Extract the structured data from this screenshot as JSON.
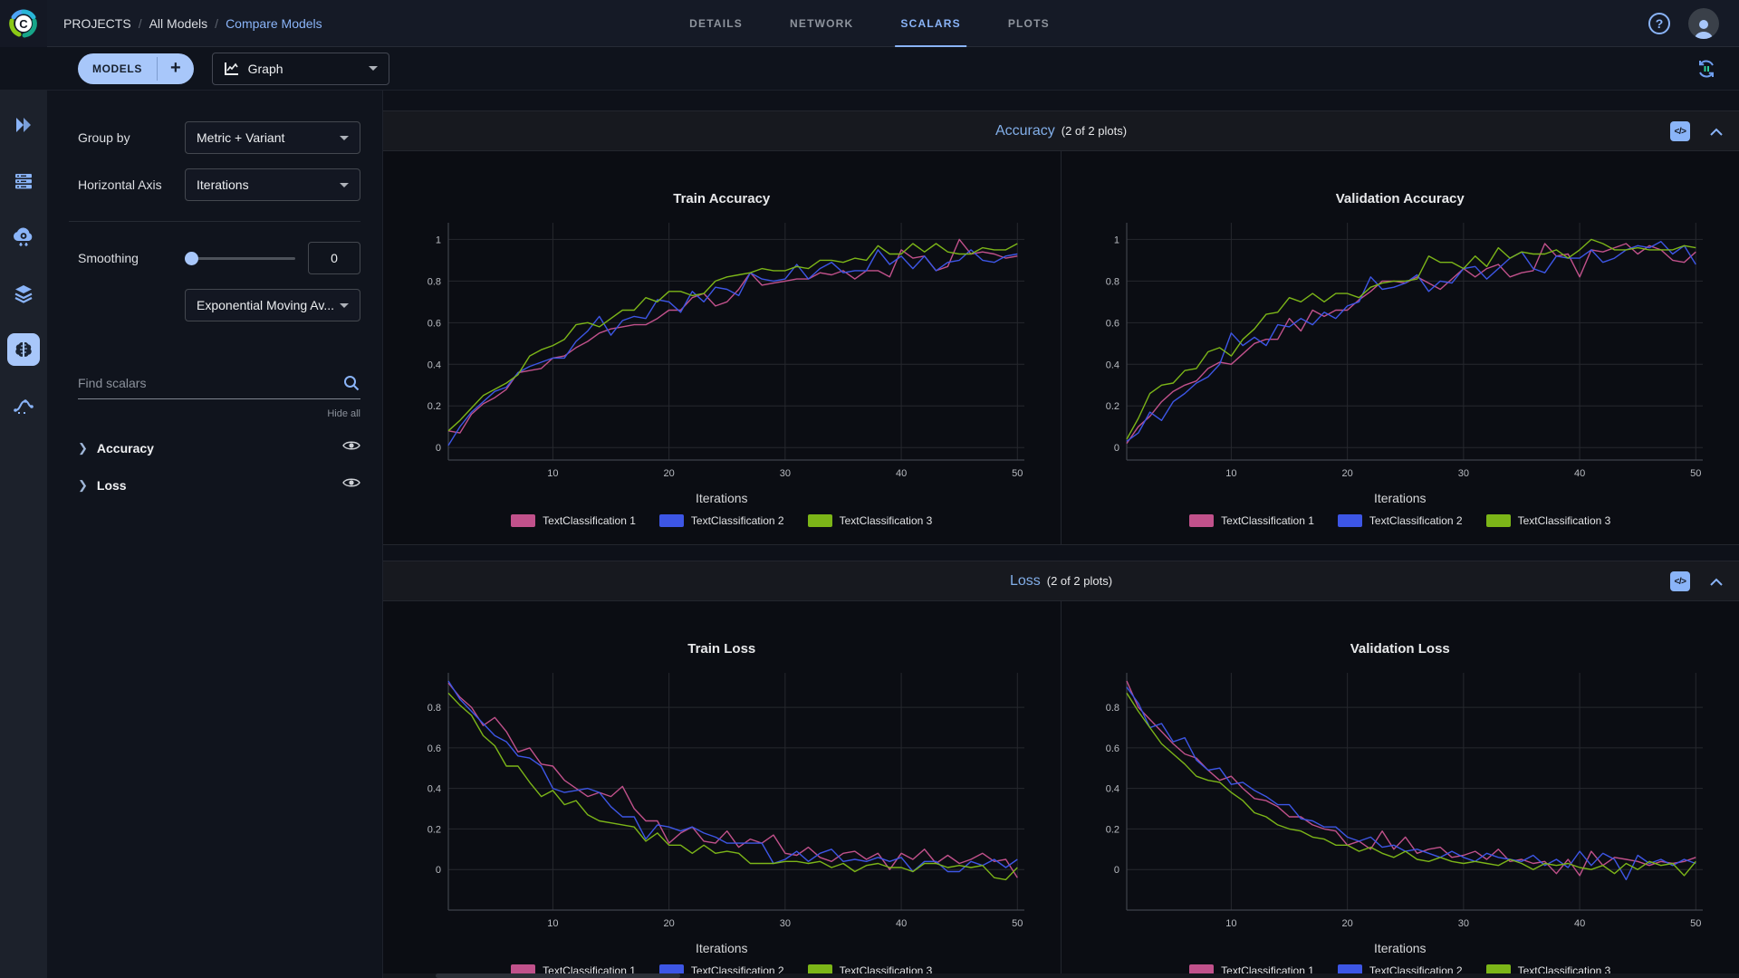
{
  "colors": {
    "accent": "#8ab4f8",
    "pill": "#a8c7fa",
    "series_pink": "#c1518b",
    "series_blue": "#3d56e5",
    "series_green": "#7cb518",
    "grid": "#26282e",
    "axis": "#3f434b",
    "tick_text": "#b9bcc2"
  },
  "header": {
    "breadcrumb": {
      "root": "PROJECTS",
      "sep": "/",
      "parent": "All Models",
      "current": "Compare Models"
    },
    "tabs": [
      {
        "label": "DETAILS",
        "active": false
      },
      {
        "label": "NETWORK",
        "active": false
      },
      {
        "label": "SCALARS",
        "active": true
      },
      {
        "label": "PLOTS",
        "active": false
      }
    ],
    "help": "?"
  },
  "toolbar": {
    "models_label": "MODELS",
    "add_label": "+",
    "graph_type": "Graph"
  },
  "sidebar": {
    "icons": [
      {
        "name": "dashboard-icon",
        "active": false
      },
      {
        "name": "queues-icon",
        "active": false
      },
      {
        "name": "workers-icon",
        "active": false
      },
      {
        "name": "datasets-icon",
        "active": false
      },
      {
        "name": "models-icon",
        "active": true
      },
      {
        "name": "pipelines-icon",
        "active": false
      }
    ]
  },
  "controls": {
    "group_by_label": "Group by",
    "group_by_value": "Metric + Variant",
    "horizontal_axis_label": "Horizontal Axis",
    "horizontal_axis_value": "Iterations",
    "smoothing_label": "Smoothing",
    "smoothing_value": "0",
    "smoothing_type": "Exponential Moving Av...",
    "find_scalars_placeholder": "Find scalars",
    "hide_all": "Hide all",
    "metrics": [
      {
        "name": "Accuracy"
      },
      {
        "name": "Loss"
      }
    ]
  },
  "sections": [
    {
      "title": "Accuracy",
      "count": "(2 of 2 plots)",
      "embed": "</>"
    },
    {
      "title": "Loss",
      "count": "(2 of 2 plots)",
      "embed": "</>"
    }
  ],
  "chart_data": [
    {
      "type": "line",
      "title": "Train Accuracy",
      "xlabel": "Iterations",
      "x_start": 1,
      "xlim": [
        1,
        50.6
      ],
      "ylim": [
        -0.06,
        1.08
      ],
      "xticks": [
        10,
        20,
        30,
        40,
        50
      ],
      "yticks": [
        0,
        0.2,
        0.4,
        0.6,
        0.8,
        1
      ],
      "grid": true,
      "legend_position": "bottom",
      "series": [
        {
          "name": "TextClassification 1",
          "color": "series_pink",
          "values": [
            0.08,
            0.07,
            0.16,
            0.21,
            0.24,
            0.28,
            0.36,
            0.37,
            0.38,
            0.43,
            0.44,
            0.48,
            0.51,
            0.55,
            0.57,
            0.58,
            0.59,
            0.59,
            0.62,
            0.66,
            0.66,
            0.72,
            0.74,
            0.68,
            0.7,
            0.76,
            0.84,
            0.78,
            0.79,
            0.8,
            0.81,
            0.81,
            0.84,
            0.83,
            0.85,
            0.81,
            0.85,
            0.85,
            0.82,
            0.95,
            0.91,
            0.92,
            0.85,
            0.87,
            1.0,
            0.93,
            0.94,
            0.93,
            0.91,
            0.92
          ]
        },
        {
          "name": "TextClassification 2",
          "color": "series_blue",
          "values": [
            0.01,
            0.1,
            0.17,
            0.22,
            0.27,
            0.29,
            0.36,
            0.39,
            0.41,
            0.43,
            0.43,
            0.51,
            0.56,
            0.63,
            0.54,
            0.61,
            0.63,
            0.62,
            0.71,
            0.7,
            0.65,
            0.75,
            0.7,
            0.77,
            0.76,
            0.73,
            0.84,
            0.81,
            0.8,
            0.81,
            0.88,
            0.81,
            0.86,
            0.89,
            0.84,
            0.85,
            0.85,
            0.95,
            0.88,
            0.92,
            0.86,
            0.92,
            0.85,
            0.89,
            0.9,
            0.95,
            0.9,
            0.89,
            0.92,
            0.93
          ]
        },
        {
          "name": "TextClassification 3",
          "color": "series_green",
          "values": [
            0.08,
            0.13,
            0.19,
            0.25,
            0.28,
            0.31,
            0.35,
            0.44,
            0.47,
            0.49,
            0.52,
            0.59,
            0.6,
            0.58,
            0.62,
            0.66,
            0.66,
            0.72,
            0.7,
            0.75,
            0.75,
            0.73,
            0.74,
            0.8,
            0.82,
            0.83,
            0.84,
            0.86,
            0.85,
            0.85,
            0.87,
            0.86,
            0.9,
            0.9,
            0.89,
            0.91,
            0.9,
            0.97,
            0.93,
            0.93,
            0.98,
            0.94,
            0.98,
            0.94,
            0.93,
            0.93,
            0.96,
            0.95,
            0.95,
            0.98
          ]
        }
      ]
    },
    {
      "type": "line",
      "title": "Validation Accuracy",
      "xlabel": "Iterations",
      "x_start": 1,
      "xlim": [
        1,
        50.6
      ],
      "ylim": [
        -0.06,
        1.08
      ],
      "xticks": [
        10,
        20,
        30,
        40,
        50
      ],
      "yticks": [
        0,
        0.2,
        0.4,
        0.6,
        0.8,
        1
      ],
      "grid": true,
      "legend_position": "bottom",
      "series": [
        {
          "name": "TextClassification 1",
          "color": "series_pink",
          "values": [
            0.02,
            0.1,
            0.15,
            0.22,
            0.27,
            0.3,
            0.32,
            0.38,
            0.41,
            0.4,
            0.45,
            0.5,
            0.52,
            0.52,
            0.62,
            0.56,
            0.66,
            0.63,
            0.66,
            0.66,
            0.71,
            0.75,
            0.8,
            0.8,
            0.79,
            0.82,
            0.79,
            0.76,
            0.81,
            0.86,
            0.82,
            0.86,
            0.88,
            0.82,
            0.84,
            0.85,
            0.98,
            0.92,
            0.93,
            0.82,
            0.95,
            0.94,
            0.96,
            0.98,
            0.93,
            0.97,
            0.95,
            0.9,
            0.89,
            0.94
          ]
        },
        {
          "name": "TextClassification 2",
          "color": "series_blue",
          "values": [
            0.03,
            0.07,
            0.17,
            0.13,
            0.22,
            0.26,
            0.31,
            0.34,
            0.4,
            0.55,
            0.49,
            0.53,
            0.49,
            0.59,
            0.58,
            0.62,
            0.59,
            0.65,
            0.62,
            0.68,
            0.7,
            0.82,
            0.76,
            0.77,
            0.79,
            0.83,
            0.75,
            0.8,
            0.79,
            0.86,
            0.87,
            0.81,
            0.86,
            0.91,
            0.94,
            0.86,
            0.84,
            0.92,
            0.91,
            0.91,
            0.95,
            0.89,
            0.91,
            0.95,
            0.97,
            0.96,
            0.99,
            0.93,
            0.97,
            0.88
          ]
        },
        {
          "name": "TextClassification 3",
          "color": "series_green",
          "values": [
            0.04,
            0.14,
            0.26,
            0.3,
            0.31,
            0.37,
            0.38,
            0.46,
            0.48,
            0.44,
            0.52,
            0.57,
            0.64,
            0.65,
            0.72,
            0.7,
            0.74,
            0.7,
            0.74,
            0.74,
            0.72,
            0.77,
            0.79,
            0.8,
            0.8,
            0.81,
            0.92,
            0.89,
            0.89,
            0.86,
            0.92,
            0.87,
            0.96,
            0.91,
            0.94,
            0.93,
            0.93,
            0.95,
            0.91,
            0.95,
            1.0,
            0.98,
            0.95,
            0.95,
            0.96,
            0.95,
            0.95,
            0.95,
            0.97,
            0.96
          ]
        }
      ]
    },
    {
      "type": "line",
      "title": "Train Loss",
      "xlabel": "Iterations",
      "x_start": 1,
      "xlim": [
        1,
        50.6
      ],
      "ylim": [
        -0.2,
        0.97
      ],
      "xticks": [
        10,
        20,
        30,
        40,
        50
      ],
      "yticks": [
        0,
        0.2,
        0.4,
        0.6,
        0.8
      ],
      "grid": true,
      "legend_position": "bottom",
      "series": [
        {
          "name": "TextClassification 1",
          "color": "series_pink",
          "values": [
            0.92,
            0.85,
            0.8,
            0.71,
            0.75,
            0.68,
            0.58,
            0.6,
            0.52,
            0.51,
            0.44,
            0.4,
            0.36,
            0.38,
            0.36,
            0.41,
            0.3,
            0.24,
            0.24,
            0.13,
            0.18,
            0.21,
            0.14,
            0.13,
            0.19,
            0.11,
            0.15,
            0.13,
            0.17,
            0.08,
            0.07,
            0.11,
            0.06,
            0.04,
            0.08,
            0.09,
            0.05,
            0.08,
            0.0,
            0.08,
            0.05,
            0.1,
            0.03,
            0.07,
            0.03,
            0.05,
            0.08,
            0.04,
            0.05,
            -0.04
          ]
        },
        {
          "name": "TextClassification 2",
          "color": "series_blue",
          "values": [
            0.93,
            0.84,
            0.78,
            0.72,
            0.66,
            0.63,
            0.56,
            0.55,
            0.51,
            0.4,
            0.38,
            0.39,
            0.4,
            0.38,
            0.31,
            0.26,
            0.26,
            0.15,
            0.22,
            0.21,
            0.19,
            0.21,
            0.18,
            0.16,
            0.13,
            0.13,
            0.13,
            0.13,
            0.03,
            0.05,
            0.09,
            0.04,
            0.08,
            0.1,
            0.04,
            0.05,
            0.04,
            0.06,
            0.04,
            0.06,
            -0.01,
            0.04,
            0.04,
            -0.01,
            -0.01,
            0.04,
            0.02,
            0.05,
            0.01,
            0.05
          ]
        },
        {
          "name": "TextClassification 3",
          "color": "series_green",
          "values": [
            0.87,
            0.81,
            0.76,
            0.66,
            0.61,
            0.51,
            0.51,
            0.43,
            0.36,
            0.39,
            0.32,
            0.34,
            0.27,
            0.24,
            0.23,
            0.22,
            0.21,
            0.14,
            0.18,
            0.12,
            0.12,
            0.08,
            0.12,
            0.08,
            0.09,
            0.08,
            0.03,
            0.03,
            0.03,
            0.04,
            0.04,
            0.03,
            0.04,
            0.01,
            0.03,
            -0.01,
            0.02,
            0.03,
            0.01,
            0.01,
            -0.01,
            0.03,
            0.03,
            0.01,
            0.02,
            0.01,
            0.02,
            -0.04,
            -0.05,
            0.01
          ]
        }
      ]
    },
    {
      "type": "line",
      "title": "Validation Loss",
      "xlabel": "Iterations",
      "x_start": 1,
      "xlim": [
        1,
        50.6
      ],
      "ylim": [
        -0.2,
        0.97
      ],
      "xticks": [
        10,
        20,
        30,
        40,
        50
      ],
      "yticks": [
        0,
        0.2,
        0.4,
        0.6,
        0.8
      ],
      "grid": true,
      "legend_position": "bottom",
      "series": [
        {
          "name": "TextClassification 1",
          "color": "series_pink",
          "values": [
            0.93,
            0.8,
            0.74,
            0.68,
            0.62,
            0.57,
            0.55,
            0.49,
            0.44,
            0.46,
            0.4,
            0.35,
            0.34,
            0.31,
            0.26,
            0.26,
            0.22,
            0.2,
            0.19,
            0.12,
            0.14,
            0.1,
            0.19,
            0.1,
            0.16,
            0.08,
            0.1,
            0.11,
            0.06,
            0.07,
            0.09,
            0.05,
            0.1,
            0.04,
            0.05,
            0.03,
            0.04,
            -0.02,
            0.05,
            -0.03,
            0.09,
            0.02,
            0.06,
            0.05,
            0.04,
            0.02,
            0.04,
            0.03,
            0.04,
            0.06
          ]
        },
        {
          "name": "TextClassification 2",
          "color": "series_blue",
          "values": [
            0.9,
            0.82,
            0.7,
            0.72,
            0.63,
            0.65,
            0.54,
            0.49,
            0.5,
            0.42,
            0.43,
            0.39,
            0.36,
            0.32,
            0.32,
            0.25,
            0.24,
            0.21,
            0.21,
            0.16,
            0.14,
            0.16,
            0.11,
            0.12,
            0.09,
            0.1,
            0.08,
            0.06,
            0.09,
            0.06,
            0.04,
            0.08,
            0.06,
            0.05,
            0.04,
            0.07,
            0.02,
            0.05,
            0.01,
            0.09,
            0.02,
            0.08,
            0.05,
            -0.05,
            0.07,
            0.03,
            0.05,
            0.02,
            0.05,
            0.03
          ]
        },
        {
          "name": "TextClassification 3",
          "color": "series_green",
          "values": [
            0.87,
            0.78,
            0.7,
            0.62,
            0.57,
            0.52,
            0.46,
            0.44,
            0.43,
            0.38,
            0.34,
            0.28,
            0.26,
            0.22,
            0.2,
            0.19,
            0.16,
            0.15,
            0.12,
            0.12,
            0.09,
            0.11,
            0.08,
            0.06,
            0.09,
            0.05,
            0.04,
            0.06,
            0.04,
            0.03,
            0.04,
            0.03,
            0.02,
            0.05,
            0.03,
            0.0,
            0.03,
            0.02,
            0.03,
            0.01,
            0.0,
            0.02,
            -0.02,
            0.03,
            0.0,
            0.04,
            0.02,
            0.03,
            -0.03,
            0.04
          ]
        }
      ]
    }
  ]
}
